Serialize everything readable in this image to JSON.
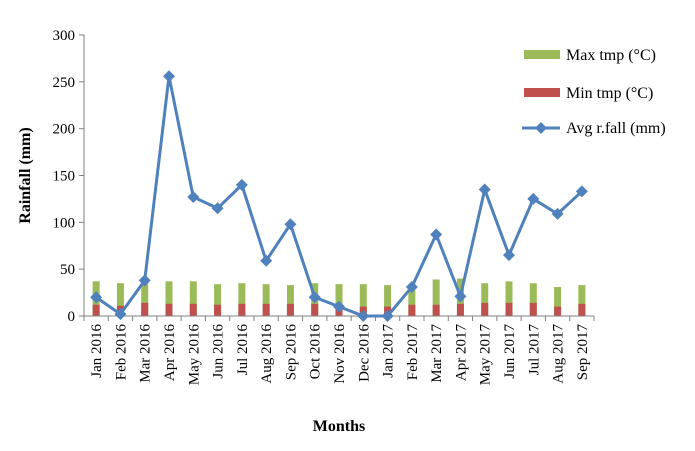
{
  "chart_data": {
    "type": "bar",
    "xlabel": "Months",
    "ylabel": "Rainfall (mm)",
    "ylim": [
      0,
      300
    ],
    "yticks": [
      0,
      50,
      100,
      150,
      200,
      250,
      300
    ],
    "grid": false,
    "legend_position": "top-right",
    "categories": [
      "Jan 2016",
      "Feb 2016",
      "Mar 2016",
      "Apr 2016",
      "May 2016",
      "Jun 2016",
      "Jul 2016",
      "Aug 2016",
      "Sep 2016",
      "Oct 2016",
      "Nov 2016",
      "Dec 2016",
      "Jan 2017",
      "Feb 2017",
      "Mar 2017",
      "Apr 2017",
      "May 2017",
      "Jun 2017",
      "Jul 2017",
      "Aug 2017",
      "Sep 2017"
    ],
    "series": [
      {
        "name": "Max tmp (°C)",
        "kind": "bar",
        "color": "#9bbb59",
        "values": [
          37,
          35,
          37,
          37,
          37,
          34,
          35,
          34,
          33,
          35,
          34,
          34,
          33,
          34,
          39,
          40,
          35,
          37,
          35,
          31,
          33
        ]
      },
      {
        "name": "Min tmp (°C)",
        "kind": "bar",
        "color": "#c0504d",
        "values": [
          12,
          11,
          14,
          13,
          13,
          12,
          13,
          13,
          13,
          13,
          11,
          10,
          10,
          12,
          12,
          13,
          14,
          14,
          14,
          10,
          13
        ]
      },
      {
        "name": "Avg r.fall (mm)",
        "kind": "line",
        "marker": "diamond",
        "color": "#4f81bd",
        "values": [
          20,
          2,
          38,
          256,
          127,
          115,
          140,
          59,
          98,
          20,
          10,
          0,
          0,
          31,
          87,
          21,
          135,
          65,
          125,
          109,
          133
        ]
      }
    ]
  }
}
